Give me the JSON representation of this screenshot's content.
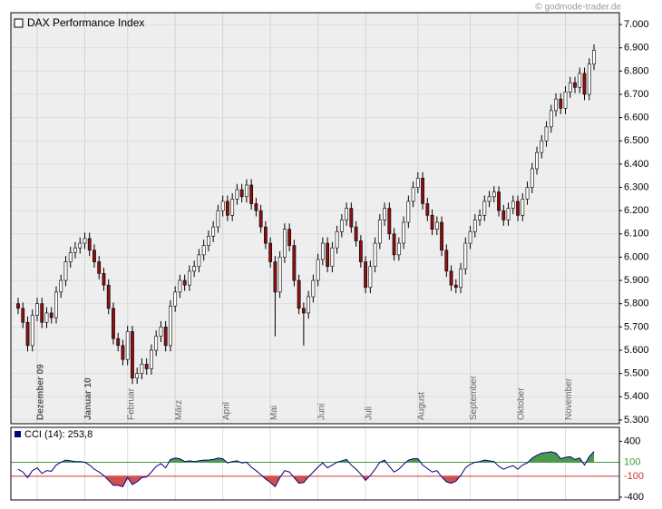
{
  "watermark": "© godmode-trader.de",
  "chart_data": [
    {
      "type": "candlestick",
      "categories": [
        null,
        null,
        null,
        null,
        "Dezember 09",
        null,
        null,
        null,
        null,
        null,
        null,
        null,
        null,
        null,
        "Januar 10",
        null,
        null,
        null,
        null,
        null,
        null,
        null,
        null,
        "Februar",
        null,
        null,
        null,
        null,
        null,
        null,
        null,
        null,
        null,
        "März",
        null,
        null,
        null,
        null,
        null,
        null,
        null,
        null,
        null,
        "April",
        null,
        null,
        null,
        null,
        null,
        null,
        null,
        null,
        null,
        "Mai",
        null,
        null,
        null,
        null,
        null,
        null,
        null,
        null,
        null,
        "Juni",
        null,
        null,
        null,
        null,
        null,
        null,
        null,
        null,
        null,
        "Juli",
        null,
        null,
        null,
        null,
        null,
        null,
        null,
        null,
        null,
        null,
        "August",
        null,
        null,
        null,
        null,
        null,
        null,
        null,
        null,
        null,
        null,
        "September",
        null,
        null,
        null,
        null,
        null,
        null,
        null,
        null,
        null,
        "Oktober",
        null,
        null,
        null,
        null,
        null,
        null,
        null,
        null,
        null,
        "November",
        null,
        null,
        null,
        null,
        null,
        null
      ],
      "series": [
        {
          "name": "DAX Performance Index",
          "up_color": "#ffffff",
          "down_color": "#8b1010",
          "open": [
            5800,
            5780,
            5720,
            5620,
            5750,
            5800,
            5720,
            5760,
            5740,
            5850,
            5900,
            5980,
            6020,
            6040,
            6060,
            6080,
            6030,
            5980,
            5930,
            5880,
            5780,
            5650,
            5620,
            5560,
            5680,
            5480,
            5500,
            5540,
            5520,
            5600,
            5660,
            5700,
            5620,
            5790,
            5850,
            5900,
            5880,
            5940,
            5960,
            6010,
            6050,
            6090,
            6130,
            6200,
            6240,
            6180,
            6250,
            6290,
            6260,
            6310,
            6230,
            6200,
            6130,
            6060,
            5980,
            5850,
            6000,
            6120,
            6050,
            5900,
            5780,
            5760,
            5830,
            5900,
            5990,
            6060,
            5960,
            6040,
            6110,
            6160,
            6210,
            6130,
            6070,
            5980,
            5870,
            5960,
            6060,
            6160,
            6210,
            6100,
            6010,
            6060,
            6150,
            6240,
            6300,
            6340,
            6230,
            6180,
            6120,
            6150,
            6030,
            5940,
            5880,
            5870,
            5950,
            6060,
            6110,
            6160,
            6180,
            6240,
            6260,
            6280,
            6200,
            6160,
            6210,
            6240,
            6180,
            6250,
            6300,
            6380,
            6450,
            6500,
            6560,
            6630,
            6680,
            6640,
            6710,
            6750,
            6730,
            6790,
            6700,
            6830
          ],
          "high": [
            5825,
            5805,
            5745,
            5775,
            5825,
            5825,
            5785,
            5785,
            5875,
            5925,
            6005,
            6045,
            6065,
            6085,
            6105,
            6105,
            6055,
            6005,
            5955,
            5905,
            5805,
            5675,
            5645,
            5705,
            5705,
            5525,
            5565,
            5565,
            5625,
            5685,
            5725,
            5725,
            5815,
            5875,
            5925,
            5925,
            5965,
            5985,
            6035,
            6075,
            6115,
            6155,
            6225,
            6265,
            6265,
            6275,
            6315,
            6315,
            6335,
            6335,
            6255,
            6225,
            6155,
            6085,
            6005,
            6025,
            6145,
            6145,
            6075,
            5925,
            5805,
            5855,
            5925,
            6015,
            6085,
            6085,
            6065,
            6135,
            6185,
            6235,
            6235,
            6155,
            6095,
            6005,
            5985,
            6085,
            6185,
            6235,
            6235,
            6125,
            6085,
            6175,
            6265,
            6325,
            6365,
            6365,
            6255,
            6205,
            6175,
            6175,
            6055,
            5965,
            5905,
            5975,
            6085,
            6135,
            6185,
            6205,
            6265,
            6285,
            6305,
            6305,
            6225,
            6235,
            6265,
            6265,
            6275,
            6325,
            6405,
            6475,
            6525,
            6585,
            6655,
            6705,
            6705,
            6735,
            6775,
            6775,
            6815,
            6815,
            6855,
            6915
          ],
          "low": [
            5755,
            5695,
            5595,
            5595,
            5725,
            5695,
            5695,
            5715,
            5715,
            5825,
            5875,
            5955,
            5995,
            6015,
            6035,
            6005,
            5955,
            5905,
            5855,
            5755,
            5625,
            5595,
            5535,
            5535,
            5455,
            5455,
            5475,
            5495,
            5495,
            5575,
            5635,
            5595,
            5595,
            5765,
            5825,
            5855,
            5855,
            5915,
            5935,
            5985,
            6025,
            6065,
            6105,
            6175,
            6155,
            6155,
            6225,
            6235,
            6235,
            6205,
            6175,
            6105,
            6035,
            5955,
            5660,
            5825,
            5975,
            6025,
            5875,
            5755,
            5620,
            5735,
            5805,
            5875,
            5965,
            5935,
            5935,
            6015,
            6085,
            6135,
            6105,
            6045,
            5955,
            5845,
            5845,
            5935,
            6035,
            6135,
            6075,
            5985,
            5985,
            6035,
            6125,
            6215,
            6275,
            6205,
            6155,
            6095,
            6095,
            6005,
            5915,
            5855,
            5845,
            5845,
            5925,
            6035,
            6085,
            6135,
            6155,
            6215,
            6235,
            6175,
            6135,
            6135,
            6185,
            6155,
            6155,
            6225,
            6275,
            6355,
            6425,
            6475,
            6535,
            6605,
            6615,
            6615,
            6685,
            6705,
            6705,
            6675,
            6675,
            6805
          ],
          "close": [
            5780,
            5720,
            5620,
            5750,
            5800,
            5720,
            5760,
            5740,
            5850,
            5900,
            5980,
            6020,
            6040,
            6060,
            6080,
            6030,
            5980,
            5930,
            5880,
            5780,
            5650,
            5620,
            5560,
            5680,
            5480,
            5500,
            5540,
            5520,
            5600,
            5660,
            5700,
            5620,
            5790,
            5850,
            5900,
            5880,
            5940,
            5960,
            6010,
            6050,
            6090,
            6130,
            6200,
            6240,
            6180,
            6250,
            6290,
            6260,
            6310,
            6230,
            6200,
            6130,
            6060,
            5980,
            5850,
            6000,
            6120,
            6050,
            5900,
            5780,
            5760,
            5830,
            5900,
            5990,
            6060,
            5960,
            6040,
            6110,
            6160,
            6210,
            6130,
            6070,
            5980,
            5870,
            5960,
            6060,
            6160,
            6210,
            6100,
            6010,
            6060,
            6150,
            6240,
            6300,
            6340,
            6230,
            6180,
            6120,
            6150,
            6030,
            5940,
            5880,
            5870,
            5950,
            6060,
            6110,
            6160,
            6180,
            6240,
            6260,
            6280,
            6200,
            6160,
            6210,
            6240,
            6180,
            6250,
            6300,
            6380,
            6450,
            6500,
            6560,
            6630,
            6680,
            6640,
            6710,
            6750,
            6730,
            6790,
            6700,
            6830,
            6890
          ]
        }
      ],
      "ylim": [
        5284,
        7051
      ],
      "yticks": [
        {
          "value": 5300,
          "label": "5.300"
        },
        {
          "value": 5400,
          "label": "5.400"
        },
        {
          "value": 5500,
          "label": "5.500"
        },
        {
          "value": 5600,
          "label": "5.600"
        },
        {
          "value": 5700,
          "label": "5.700"
        },
        {
          "value": 5800,
          "label": "5.800"
        },
        {
          "value": 5900,
          "label": "5.900"
        },
        {
          "value": 6000,
          "label": "6.000"
        },
        {
          "value": 6100,
          "label": "6.100"
        },
        {
          "value": 6200,
          "label": "6.200"
        },
        {
          "value": 6300,
          "label": "6.300"
        },
        {
          "value": 6400,
          "label": "6.400"
        },
        {
          "value": 6500,
          "label": "6.500"
        },
        {
          "value": 6600,
          "label": "6.600"
        },
        {
          "value": 6700,
          "label": "6.700"
        },
        {
          "value": 6800,
          "label": "6.800"
        },
        {
          "value": 6900,
          "label": "6.900"
        },
        {
          "value": 7000,
          "label": "7.000"
        }
      ],
      "grid": true
    },
    {
      "type": "line",
      "series": [
        {
          "name": "CCI (14): 253,8",
          "color": "#000080",
          "values": [
            0,
            -40,
            -120,
            -20,
            20,
            -60,
            -20,
            -30,
            60,
            100,
            130,
            120,
            110,
            110,
            100,
            60,
            0,
            -40,
            -90,
            -160,
            -230,
            -230,
            -250,
            -120,
            -220,
            -180,
            -120,
            -110,
            -40,
            40,
            80,
            20,
            140,
            160,
            150,
            110,
            120,
            110,
            120,
            130,
            130,
            140,
            160,
            150,
            90,
            110,
            120,
            90,
            100,
            30,
            -20,
            -80,
            -140,
            -190,
            -250,
            -120,
            -20,
            -40,
            -120,
            -200,
            -190,
            -110,
            -40,
            30,
            90,
            20,
            60,
            100,
            120,
            140,
            60,
            0,
            -70,
            -160,
            -90,
            0,
            100,
            130,
            40,
            -40,
            0,
            70,
            130,
            150,
            150,
            60,
            10,
            -40,
            -20,
            -110,
            -180,
            -200,
            -170,
            -90,
            20,
            70,
            100,
            110,
            130,
            120,
            110,
            40,
            0,
            30,
            50,
            0,
            60,
            90,
            160,
            200,
            230,
            240,
            250,
            230,
            150,
            170,
            180,
            140,
            160,
            60,
            180,
            254
          ]
        }
      ],
      "ylim": [
        -440,
        600
      ],
      "yticks": [
        400,
        -400
      ],
      "levels": [
        {
          "value": 100,
          "color": "#3f9a3f",
          "fill": "#4a9a4a"
        },
        {
          "value": -100,
          "color": "#d03030",
          "fill": "#d05050"
        }
      ]
    }
  ]
}
